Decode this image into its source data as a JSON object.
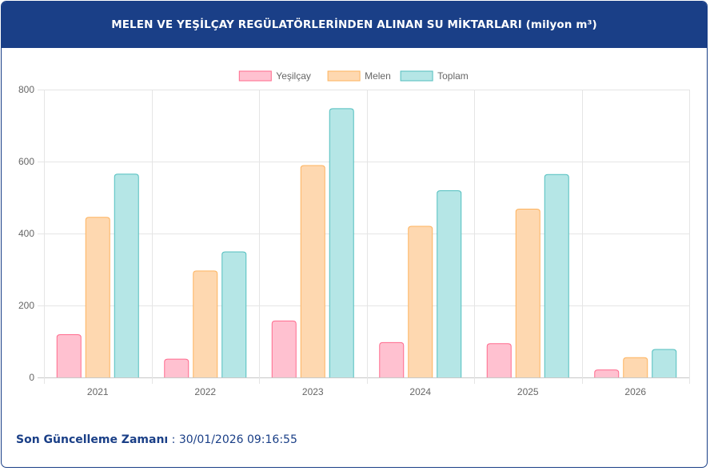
{
  "title": "MELEN VE YEŞİLÇAY REGÜLATÖRLERİNDEN ALINAN SU MİKTARLARI (milyon m³)",
  "footer": {
    "label": "Son Güncelleme Zamanı",
    "separator": " : ",
    "value": "30/01/2026 09:16:55"
  },
  "chart_data": {
    "type": "bar",
    "title": "MELEN VE YEŞİLÇAY REGÜLATÖRLERİNDEN ALINAN SU MİKTARLARI (milyon m³)",
    "categories": [
      "2021",
      "2022",
      "2023",
      "2024",
      "2025",
      "2026"
    ],
    "series": [
      {
        "name": "Yeşilçay",
        "values": [
          120,
          52,
          158,
          98,
          95,
          22
        ],
        "fill": "#ffc1d0",
        "stroke": "#ff6b8e"
      },
      {
        "name": "Melen",
        "values": [
          446,
          297,
          590,
          421,
          469,
          56
        ],
        "fill": "#fed8b0",
        "stroke": "#fdb35e"
      },
      {
        "name": "Toplam",
        "values": [
          566,
          350,
          748,
          520,
          565,
          79
        ],
        "fill": "#b5e6e6",
        "stroke": "#52bfbf"
      }
    ],
    "ylim": [
      0,
      800
    ],
    "yticks": [
      0,
      200,
      400,
      600,
      800
    ],
    "grid": true,
    "legend": "top-center",
    "xlabel": "",
    "ylabel": ""
  }
}
